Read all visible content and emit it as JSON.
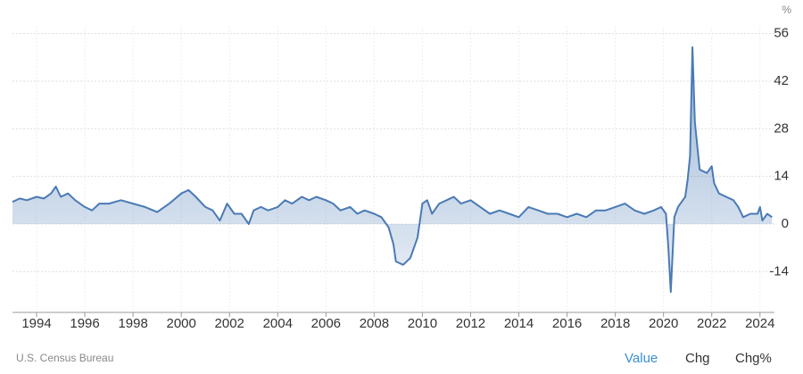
{
  "chart_data": {
    "type": "area",
    "unit": "%",
    "source": "U.S. Census Bureau",
    "buttons": [
      "Value",
      "Chg",
      "Chg%"
    ],
    "color": "#4a7ab5",
    "grid": true,
    "x": [
      1993.0,
      1993.3,
      1993.6,
      1994.0,
      1994.3,
      1994.6,
      1994.8,
      1995.0,
      1995.3,
      1995.6,
      1996.0,
      1996.3,
      1996.6,
      1997.0,
      1997.5,
      1998.0,
      1998.5,
      1999.0,
      1999.5,
      2000.0,
      2000.3,
      2000.6,
      2001.0,
      2001.3,
      2001.6,
      2001.9,
      2002.2,
      2002.5,
      2002.8,
      2003.0,
      2003.3,
      2003.6,
      2004.0,
      2004.3,
      2004.6,
      2005.0,
      2005.3,
      2005.6,
      2006.0,
      2006.3,
      2006.6,
      2007.0,
      2007.3,
      2007.6,
      2008.0,
      2008.3,
      2008.6,
      2008.8,
      2008.9,
      2009.2,
      2009.5,
      2009.8,
      2010.0,
      2010.2,
      2010.4,
      2010.7,
      2011.0,
      2011.3,
      2011.6,
      2012.0,
      2012.4,
      2012.8,
      2013.2,
      2013.6,
      2014.0,
      2014.4,
      2014.8,
      2015.2,
      2015.6,
      2016.0,
      2016.4,
      2016.8,
      2017.2,
      2017.6,
      2018.0,
      2018.4,
      2018.8,
      2019.2,
      2019.6,
      2019.9,
      2020.1,
      2020.2,
      2020.3,
      2020.45,
      2020.6,
      2020.9,
      2021.0,
      2021.1,
      2021.2,
      2021.3,
      2021.5,
      2021.8,
      2022.0,
      2022.1,
      2022.3,
      2022.6,
      2022.9,
      2023.1,
      2023.3,
      2023.6,
      2023.9,
      2024.0,
      2024.1,
      2024.3,
      2024.5
    ],
    "values": [
      6.5,
      7.5,
      7,
      8,
      7.5,
      9,
      11,
      8,
      9,
      7,
      5,
      4,
      6,
      6,
      7,
      6,
      5,
      3.5,
      6,
      9,
      10,
      8,
      5,
      4,
      1,
      6,
      3,
      3,
      0,
      4,
      5,
      4,
      5,
      7,
      6,
      8,
      7,
      8,
      7,
      6,
      4,
      5,
      3,
      4,
      3,
      2,
      -1,
      -6,
      -11,
      -12,
      -10,
      -4,
      6,
      7,
      3,
      6,
      7,
      8,
      6,
      7,
      5,
      3,
      4,
      3,
      2,
      5,
      4,
      3,
      3,
      2,
      3,
      2,
      4,
      4,
      5,
      6,
      4,
      3,
      4,
      5,
      3,
      -7,
      -20,
      2,
      5,
      8,
      13,
      20,
      52,
      30,
      16,
      15,
      17,
      12,
      9,
      8,
      7,
      5,
      2,
      3,
      3,
      5,
      1,
      3,
      2
    ],
    "xlim": [
      1993.0,
      2024.6
    ],
    "xticks": [
      1994,
      1996,
      1998,
      2000,
      2002,
      2004,
      2006,
      2008,
      2010,
      2012,
      2014,
      2016,
      2018,
      2020,
      2022,
      2024
    ],
    "ylim": [
      -26,
      58
    ],
    "yticks": [
      -14,
      0,
      14,
      28,
      42,
      56
    ]
  }
}
